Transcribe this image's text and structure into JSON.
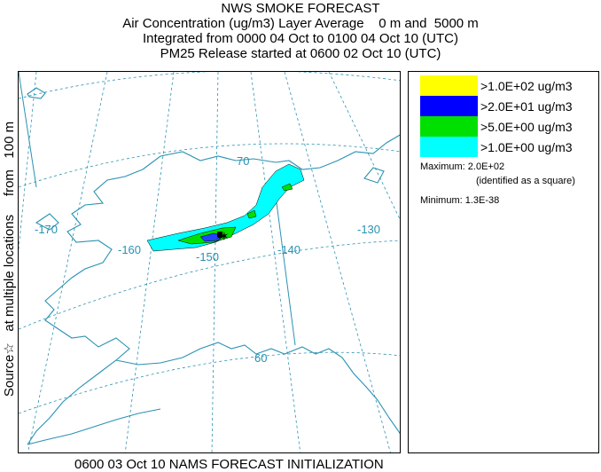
{
  "title": {
    "line1": "NWS SMOKE FORECAST",
    "line2": "Air Concentration (ug/m3) Layer Average    0 m and  5000 m",
    "line3": "Integrated from 0000 04 Oct to 0100 04 Oct 10 (UTC)",
    "line4": "PM25 Release started at 0600 02 Oct 10 (UTC)"
  },
  "side_label": "Source☆   at multiple locations     from   100 m",
  "footer": "0600 03 Oct 10 NAMS FORECAST INITIALIZATION",
  "legend": {
    "items": [
      {
        "color": "#ffff00",
        "label": ">1.0E+02 ug/m3"
      },
      {
        "color": "#0000ff",
        "label": ">2.0E+01 ug/m3"
      },
      {
        "color": "#00e000",
        "label": ">5.0E+00 ug/m3"
      },
      {
        "color": "#00ffff",
        "label": ">1.0E+00 ug/m3"
      }
    ],
    "maximum_label": "Maximum: 2.0E+02",
    "maximum_note": "(identified as a square)",
    "minimum_label": "Minimum: 1.3E-38"
  },
  "map": {
    "lon_labels": [
      "-170",
      "-160",
      "-150",
      "-140",
      "-130"
    ],
    "lat_labels": [
      "70",
      "60"
    ],
    "coast_color": "#2a92b3",
    "grid_color": "#2a92b3"
  }
}
